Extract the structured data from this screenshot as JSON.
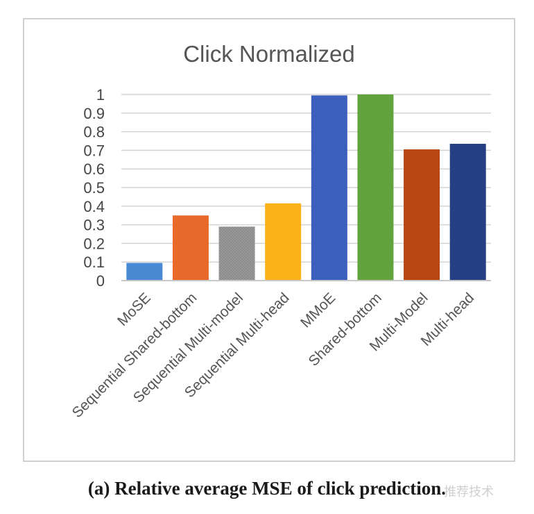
{
  "caption": "(a) Relative average MSE of click prediction.",
  "watermark": "推荐技术",
  "chart_data": {
    "type": "bar",
    "title": "Click Normalized",
    "categories": [
      "MoSE",
      "Sequential Shared-bottom",
      "Sequential Multi-model",
      "Sequential Multi-head",
      "MMoE",
      "Shared-bottom",
      "Multi-Model",
      "Multi-head"
    ],
    "values": [
      0.095,
      0.35,
      0.29,
      0.415,
      0.995,
      1.0,
      0.705,
      0.735
    ],
    "colors": [
      "#4a8ad4",
      "#e8692a",
      "#9a9a9a",
      "#fab218",
      "#3a5fbc",
      "#62a33d",
      "#b74612",
      "#253f85"
    ],
    "ylim": [
      0,
      1
    ],
    "yticks": [
      "0",
      "0.1",
      "0.2",
      "0.3",
      "0.4",
      "0.5",
      "0.6",
      "0.7",
      "0.8",
      "0.9",
      "1"
    ],
    "grid": true,
    "xlabel": "",
    "ylabel": ""
  }
}
